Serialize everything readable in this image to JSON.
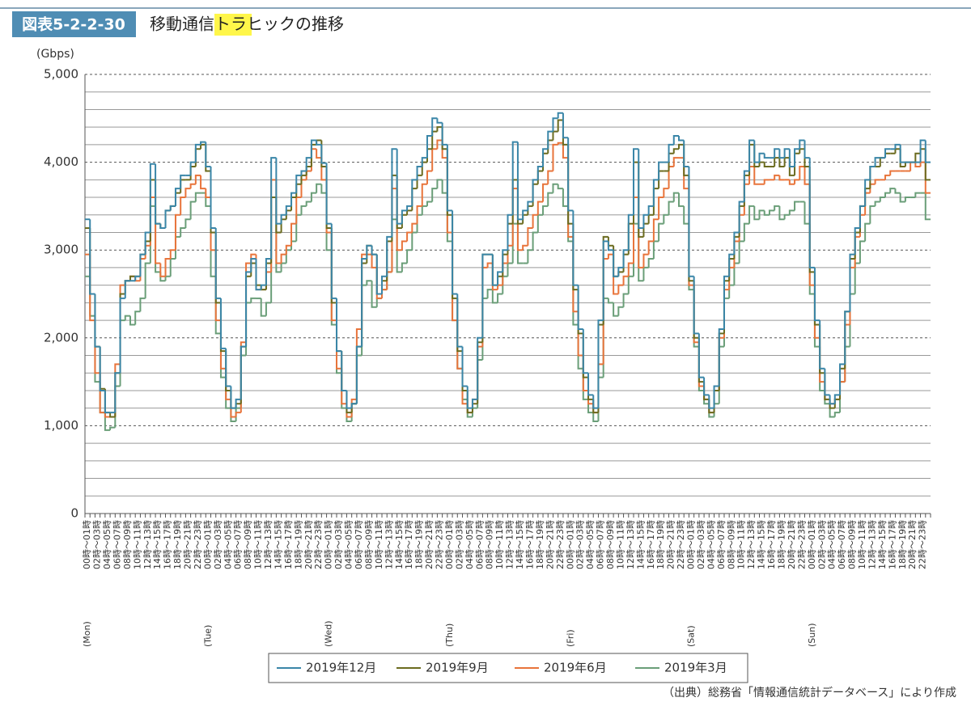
{
  "header": {
    "figure_number": "図表5-2-2-30"
  },
  "chart_data": {
    "type": "step-line",
    "title": "移動通信トラヒックの推移",
    "y_label": "(Gbps)",
    "source": "（出典）総務省「情報通信統計データベース」により作成",
    "ylim": [
      0,
      5000
    ],
    "yticks": [
      0,
      {
        "value": 1000,
        "label": "1,000"
      },
      {
        "value": 2000,
        "label": "2,000"
      },
      {
        "value": 3000,
        "label": "3,000"
      },
      {
        "value": 4000,
        "label": "4,000"
      },
      {
        "value": 5000,
        "label": "5,000"
      }
    ],
    "y_minor_ticks": [
      200,
      400,
      600,
      800,
      1200,
      1400,
      1600,
      1800,
      2200,
      2400,
      2600,
      2800,
      3200,
      3400,
      3600,
      3800,
      4200,
      4400,
      4600,
      4800
    ],
    "grid": true,
    "days": [
      "(Mon)",
      "(Tue)",
      "(Wed)",
      "(Thu)",
      "(Fri)",
      "(Sat)",
      "(Sun)"
    ],
    "categories": [
      "00時～01時",
      null,
      "02時～03時",
      null,
      "04時～05時",
      null,
      "06時～07時",
      null,
      "08時～09時",
      null,
      "10時～11時",
      null,
      "12時～13時",
      null,
      "14時～15時",
      null,
      "16時～17時",
      null,
      "18時～19時",
      null,
      "20時～21時",
      null,
      "22時～23時",
      null,
      "00時～01時",
      null,
      "02時～03時",
      null,
      "04時～05時",
      null,
      "06時～07時",
      null,
      "08時～09時",
      null,
      "10時～11時",
      null,
      "12時～13時",
      null,
      "14時～15時",
      null,
      "16時～17時",
      null,
      "18時～19時",
      null,
      "20時～21時",
      null,
      "22時～23時",
      null,
      "00時～01時",
      null,
      "02時～03時",
      null,
      "04時～05時",
      null,
      "06時～07時",
      null,
      "08時～09時",
      null,
      "10時～11時",
      null,
      "12時～13時",
      null,
      "14時～15時",
      null,
      "16時～17時",
      null,
      "18時～19時",
      null,
      "20時～21時",
      null,
      "22時～23時",
      null,
      "00時～01時",
      null,
      "02時～03時",
      null,
      "04時～05時",
      null,
      "06時～07時",
      null,
      "08時～09時",
      null,
      "10時～11時",
      null,
      "12時～13時",
      null,
      "14時～15時",
      null,
      "16時～17時",
      null,
      "18時～19時",
      null,
      "20時～21時",
      null,
      "22時～23時",
      null,
      "00時～01時",
      null,
      "02時～03時",
      null,
      "04時～05時",
      null,
      "06時～07時",
      null,
      "08時～09時",
      null,
      "10時～11時",
      null,
      "12時～13時",
      null,
      "14時～15時",
      null,
      "16時～17時",
      null,
      "18時～19時",
      null,
      "20時～21時",
      null,
      "22時～23時",
      null,
      "00時～01時",
      null,
      "02時～03時",
      null,
      "04時～05時",
      null,
      "06時～07時",
      null,
      "08時～09時",
      null,
      "10時～11時",
      null,
      "12時～13時",
      null,
      "14時～15時",
      null,
      "16時～17時",
      null,
      "18時～19時",
      null,
      "20時～21時",
      null,
      "22時～23時",
      null,
      "00時～01時",
      null,
      "02時～03時",
      null,
      "04時～05時",
      null,
      "06時～07時",
      null,
      "08時～09時",
      null,
      "10時～11時",
      null,
      "12時～13時",
      null,
      "14時～15時",
      null,
      "16時～17時",
      null,
      "18時～19時",
      null,
      "20時～21時",
      null,
      "22時～23時",
      null
    ],
    "series": [
      {
        "name": "2019年12月",
        "color": "#3a86a8",
        "values": [
          3350,
          2500,
          1900,
          1400,
          1150,
          1150,
          1600,
          2450,
          2650,
          2650,
          2700,
          2950,
          3200,
          3980,
          3300,
          3250,
          3450,
          3500,
          3700,
          3850,
          3850,
          4000,
          4200,
          4230,
          3950,
          3250,
          2450,
          1880,
          1450,
          1200,
          1300,
          1900,
          2750,
          2900,
          2550,
          2600,
          2900,
          4050,
          3300,
          3400,
          3500,
          3650,
          3850,
          3900,
          4050,
          4250,
          4200,
          3990,
          3300,
          2450,
          1850,
          1400,
          1200,
          1250,
          1900,
          2900,
          3050,
          2950,
          2500,
          2700,
          3150,
          4150,
          3300,
          3450,
          3500,
          3800,
          3950,
          4050,
          4300,
          4500,
          4450,
          4200,
          3450,
          2500,
          1900,
          1450,
          1200,
          1300,
          2000,
          2950,
          2950,
          2600,
          2750,
          3000,
          3400,
          4230,
          3350,
          3450,
          3550,
          3800,
          3950,
          4150,
          4350,
          4500,
          4560,
          4280,
          3450,
          2600,
          2100,
          1600,
          1350,
          1200,
          2200,
          3100,
          3000,
          2700,
          2800,
          3000,
          3400,
          4150,
          3250,
          3400,
          3500,
          3800,
          4000,
          4000,
          4200,
          4300,
          4250,
          3950,
          2700,
          2050,
          1550,
          1350,
          1200,
          1450,
          2100,
          2700,
          2950,
          3200,
          3550,
          3900,
          4250,
          4000,
          4100,
          4050,
          4050,
          4150,
          4050,
          4150,
          3950,
          4150,
          4250,
          4050,
          2800,
          2200,
          1650,
          1350,
          1250,
          1350,
          1700,
          2300,
          2950,
          3250,
          3500,
          3800,
          3950,
          4050,
          4050,
          4150,
          4150,
          4200,
          4000,
          4000,
          4000,
          4000,
          4250,
          4000
        ]
      },
      {
        "name": "2019年9月",
        "color": "#6b6b1f",
        "values": [
          3250,
          2500,
          1900,
          1420,
          1150,
          1100,
          1600,
          2500,
          2650,
          2700,
          2700,
          2950,
          3100,
          3800,
          3300,
          3250,
          3450,
          3500,
          3650,
          3800,
          3800,
          3950,
          4150,
          4200,
          3900,
          3200,
          2400,
          1850,
          1400,
          1200,
          1250,
          1900,
          2700,
          2850,
          2600,
          2550,
          2850,
          3600,
          3200,
          3350,
          3450,
          3600,
          3750,
          3850,
          3950,
          4200,
          4250,
          3950,
          3250,
          2400,
          1850,
          1400,
          1150,
          1250,
          1900,
          2850,
          3050,
          2950,
          2500,
          2650,
          3100,
          3850,
          3250,
          3400,
          3450,
          3700,
          3850,
          4000,
          4150,
          4350,
          4400,
          4150,
          3400,
          2450,
          1850,
          1400,
          1150,
          1250,
          1950,
          2950,
          2950,
          2600,
          2700,
          2950,
          3300,
          3800,
          3300,
          3400,
          3500,
          3750,
          3900,
          4100,
          4250,
          4350,
          4480,
          4200,
          3300,
          2550,
          2050,
          1550,
          1300,
          1150,
          2150,
          3150,
          3050,
          2700,
          2750,
          2950,
          3300,
          4000,
          3150,
          3300,
          3400,
          3700,
          3900,
          3900,
          4100,
          4150,
          4200,
          3850,
          2650,
          2000,
          1500,
          1300,
          1150,
          1400,
          2050,
          2650,
          2900,
          3150,
          3500,
          3850,
          4200,
          3950,
          4000,
          3950,
          3950,
          4050,
          3950,
          4050,
          3850,
          4100,
          4150,
          3950,
          2750,
          2150,
          1600,
          1300,
          1200,
          1300,
          1650,
          2300,
          2900,
          3200,
          3500,
          3700,
          3950,
          3950,
          4050,
          4100,
          4100,
          4150,
          3950,
          4000,
          4000,
          4100,
          4150,
          3800
        ]
      },
      {
        "name": "2019年6月",
        "color": "#e8743b",
        "values": [
          2950,
          2200,
          1600,
          1150,
          1100,
          1100,
          1700,
          2600,
          2650,
          2700,
          2650,
          2900,
          3050,
          3600,
          2850,
          2700,
          2900,
          3000,
          3400,
          3600,
          3700,
          3750,
          3850,
          3700,
          3600,
          3000,
          2200,
          1650,
          1300,
          1100,
          1150,
          1950,
          2850,
          2950,
          2550,
          2550,
          2750,
          3800,
          2850,
          2950,
          3050,
          3300,
          3600,
          3800,
          3900,
          4150,
          4050,
          3800,
          3200,
          2200,
          1650,
          1250,
          1100,
          1300,
          2100,
          2950,
          2950,
          2800,
          2450,
          2550,
          2750,
          3700,
          3000,
          3100,
          3200,
          3300,
          3500,
          3750,
          3900,
          4150,
          4250,
          4050,
          3200,
          2200,
          1650,
          1250,
          1150,
          1300,
          1900,
          2800,
          2850,
          2550,
          2600,
          2850,
          3050,
          3700,
          3000,
          3050,
          3250,
          3400,
          3550,
          3750,
          3900,
          4200,
          4220,
          4050,
          3150,
          2300,
          1800,
          1400,
          1250,
          1150,
          1700,
          2900,
          2950,
          2500,
          2600,
          2700,
          2850,
          3600,
          2800,
          2950,
          3100,
          3350,
          3600,
          3700,
          3950,
          4050,
          4050,
          3700,
          2600,
          1950,
          1450,
          1300,
          1150,
          1400,
          2000,
          2550,
          2800,
          3100,
          3400,
          3750,
          3950,
          3750,
          3750,
          3800,
          3800,
          3850,
          3800,
          3800,
          3750,
          3800,
          3950,
          3750,
          2600,
          2000,
          1500,
          1300,
          1250,
          1300,
          1500,
          2150,
          2800,
          3150,
          3400,
          3650,
          3750,
          3800,
          3800,
          3850,
          3900,
          3900,
          3900,
          3900,
          4000,
          3950,
          4000,
          3650
        ]
      },
      {
        "name": "2019年3月",
        "color": "#6a9e78",
        "values": [
          2700,
          2250,
          1500,
          1150,
          950,
          980,
          1450,
          2200,
          2250,
          2150,
          2300,
          2450,
          2850,
          3500,
          2750,
          2650,
          2700,
          2900,
          3150,
          3250,
          3350,
          3550,
          3650,
          3650,
          3500,
          2700,
          2050,
          1550,
          1200,
          1050,
          1200,
          1800,
          2400,
          2450,
          2450,
          2250,
          2400,
          3600,
          2750,
          2850,
          3000,
          3100,
          3400,
          3500,
          3550,
          3650,
          3750,
          3650,
          3000,
          2150,
          1600,
          1200,
          1050,
          1250,
          1800,
          2600,
          2650,
          2350,
          2450,
          2550,
          2750,
          3350,
          2750,
          2850,
          3000,
          3200,
          3400,
          3500,
          3550,
          3700,
          3800,
          3650,
          3100,
          2200,
          1650,
          1300,
          1100,
          1200,
          1750,
          2450,
          2550,
          2400,
          2500,
          2700,
          2850,
          3300,
          2850,
          2850,
          3000,
          3200,
          3400,
          3500,
          3650,
          3750,
          3700,
          3500,
          3100,
          2150,
          1650,
          1300,
          1150,
          1050,
          1550,
          2450,
          2400,
          2250,
          2350,
          2500,
          2700,
          3300,
          2650,
          2800,
          2900,
          3100,
          3300,
          3400,
          3550,
          3650,
          3500,
          3300,
          2550,
          1900,
          1400,
          1250,
          1100,
          1250,
          1900,
          2450,
          2600,
          2850,
          3100,
          3300,
          3500,
          3350,
          3450,
          3400,
          3450,
          3500,
          3350,
          3400,
          3450,
          3550,
          3550,
          3300,
          2500,
          1900,
          1400,
          1250,
          1100,
          1150,
          1500,
          1900,
          2500,
          2850,
          3100,
          3300,
          3500,
          3550,
          3600,
          3650,
          3700,
          3650,
          3550,
          3600,
          3600,
          3650,
          3650,
          3350
        ]
      }
    ]
  }
}
